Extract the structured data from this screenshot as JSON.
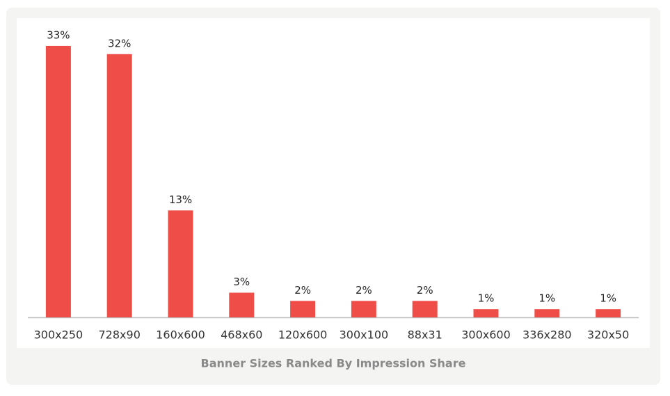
{
  "chart_data": {
    "type": "bar",
    "title": "Banner Sizes Ranked By Impression Share",
    "categories": [
      "300x250",
      "728x90",
      "160x600",
      "468x60",
      "120x600",
      "300x100",
      "88x31",
      "300x600",
      "336x280",
      "320x50"
    ],
    "values": [
      33,
      32,
      13,
      3,
      2,
      2,
      2,
      1,
      1,
      1
    ],
    "value_labels": [
      "33%",
      "32%",
      "13%",
      "3%",
      "2%",
      "2%",
      "2%",
      "1%",
      "1%",
      "1%"
    ],
    "color": "#ef4e48"
  }
}
